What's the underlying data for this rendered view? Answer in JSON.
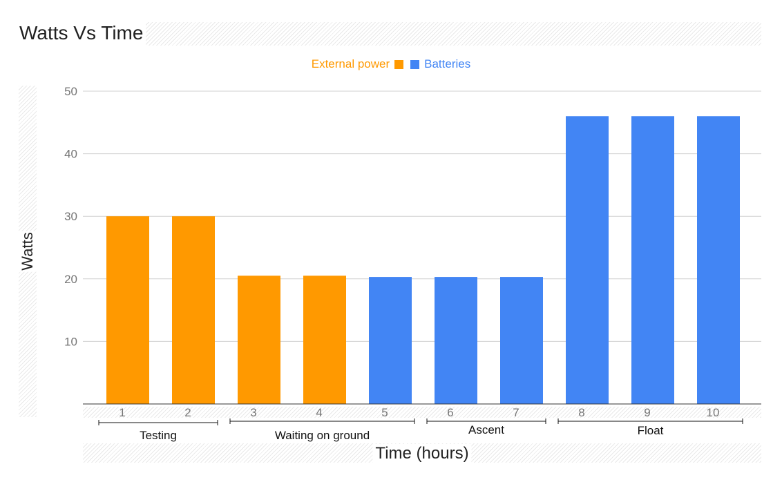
{
  "chart_data": {
    "type": "bar",
    "title": "Watts Vs Time",
    "xlabel": "Time (hours)",
    "ylabel": "Watts",
    "categories": [
      "1",
      "2",
      "3",
      "4",
      "5",
      "6",
      "7",
      "8",
      "9",
      "10"
    ],
    "values": [
      30,
      30,
      20.5,
      20.5,
      20.3,
      20.3,
      20.3,
      46,
      46,
      46
    ],
    "bar_series": [
      "External power",
      "External power",
      "External power",
      "External power",
      "Batteries",
      "Batteries",
      "Batteries",
      "Batteries",
      "Batteries",
      "Batteries"
    ],
    "series": [
      {
        "name": "External power",
        "color": "#ff9900"
      },
      {
        "name": "Batteries",
        "color": "#4285f4"
      }
    ],
    "yticks": [
      10,
      20,
      30,
      40,
      50
    ],
    "ylim": [
      0,
      50
    ],
    "grid": true,
    "legend_position": "top",
    "groups": [
      {
        "label": "Testing",
        "from": "1",
        "to": "2"
      },
      {
        "label": "Waiting on ground",
        "from": "3",
        "to": "5"
      },
      {
        "label": "Ascent",
        "from": "6",
        "to": "7"
      },
      {
        "label": "Float",
        "from": "8",
        "to": "10"
      }
    ]
  }
}
